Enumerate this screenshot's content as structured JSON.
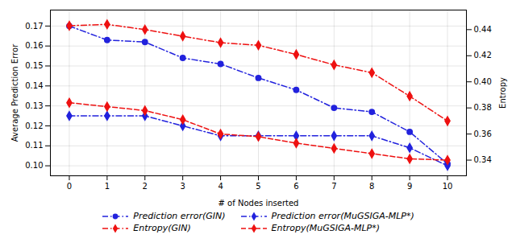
{
  "chart_data": {
    "type": "line",
    "xlabel": "# of Nodes inserted",
    "ylabel": "Average Prediction Error",
    "y2label": "Entropy",
    "x": [
      0,
      1,
      2,
      3,
      4,
      5,
      6,
      7,
      8,
      9,
      10
    ],
    "xlim": [
      -0.5,
      10.5
    ],
    "xticks": [
      0,
      1,
      2,
      3,
      4,
      5,
      6,
      7,
      8,
      9,
      10
    ],
    "ylim": [
      0.095,
      0.178
    ],
    "yticks": [
      {
        "value": 0.1,
        "label": "0.10"
      },
      0.11,
      0.12,
      0.13,
      0.14,
      0.15,
      0.16,
      0.17
    ],
    "y2lim": [
      0.328,
      0.455
    ],
    "y2ticks": [
      0.34,
      0.36,
      0.38,
      {
        "value": 0.4,
        "label": "0.40"
      },
      0.42,
      0.44
    ],
    "grid": true,
    "legend": "bottom",
    "series": [
      {
        "name": "Prediction error(GIN)",
        "color": "#2222DD",
        "marker": "circle",
        "line_style": "dashdot",
        "values": [
          0.17,
          0.163,
          0.162,
          0.154,
          0.151,
          0.144,
          0.138,
          0.129,
          0.127,
          0.117,
          0.101
        ]
      },
      {
        "name": "Entropy(GIN)",
        "color": "#EE1111",
        "marker": "diamond",
        "line_style": "dashdot",
        "axis": "y2",
        "values": [
          0.443,
          0.444,
          0.44,
          0.435,
          0.43,
          0.428,
          0.421,
          0.413,
          0.407,
          0.389,
          0.37
        ]
      },
      {
        "name": "Prediction error(MuGSIGA-MLP*)",
        "color": "#2222DD",
        "marker": "diamond",
        "line_style": "dashdot",
        "values": [
          0.125,
          0.125,
          0.125,
          0.12,
          0.115,
          0.115,
          0.115,
          0.115,
          0.115,
          0.109,
          0.1
        ]
      },
      {
        "name": "Entropy(MuGSIGA-MLP*)",
        "color": "#EE1111",
        "marker": "diamond",
        "line_style": "dashed",
        "axis": "y2",
        "values": [
          0.384,
          0.381,
          0.378,
          0.371,
          0.36,
          0.358,
          0.353,
          0.349,
          0.345,
          0.341,
          0.34
        ]
      }
    ]
  }
}
